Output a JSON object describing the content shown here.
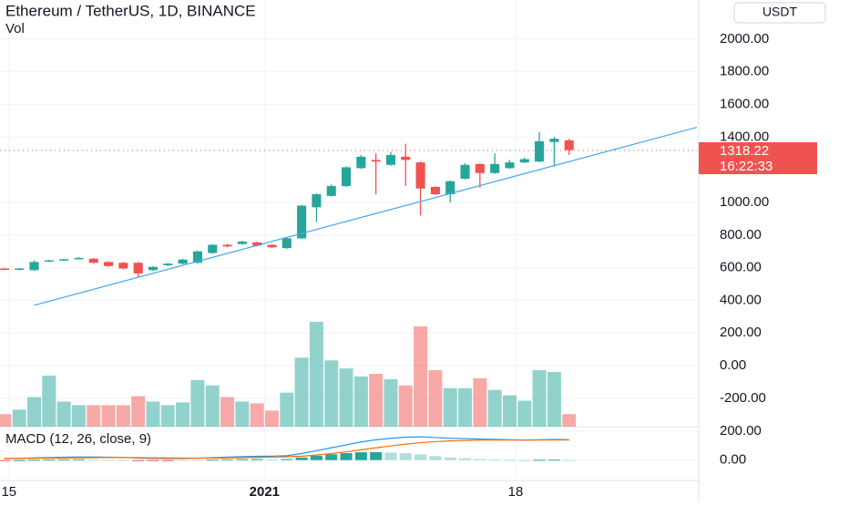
{
  "chart_data": {
    "type": "candlestick",
    "title": "Ethereum / TetherUS, 1D, BINANCE",
    "volume_label": "Vol",
    "currency": "USDT",
    "up_color": "#26a69a",
    "down_color": "#ef5350",
    "xlim": [
      -0.3,
      46.6
    ],
    "xticks": [
      {
        "value": 0.3,
        "label": "15"
      },
      {
        "value": 17.5,
        "label": "2021"
      },
      {
        "value": 34.4,
        "label": "18"
      }
    ],
    "ylim": [
      -374,
      2240
    ],
    "yticks": [
      {
        "value": 2000,
        "label": "2000.00"
      },
      {
        "value": 1800,
        "label": "1800.00"
      },
      {
        "value": 1600,
        "label": "1600.00"
      },
      {
        "value": 1400,
        "label": "1400.00"
      },
      {
        "value": 1000,
        "label": "1000.00"
      },
      {
        "value": 800,
        "label": "800.00"
      },
      {
        "value": 600,
        "label": "600.00"
      },
      {
        "value": 400,
        "label": "400.00"
      },
      {
        "value": 200,
        "label": "200.00"
      },
      {
        "value": 0,
        "label": "0.00"
      },
      {
        "value": -200,
        "label": "-200.00"
      }
    ],
    "open": [
      595,
      592,
      585,
      640,
      648,
      655,
      655,
      635,
      630,
      630,
      585,
      615,
      625,
      630,
      690,
      740,
      745,
      755,
      740,
      720,
      780,
      970,
      1040,
      1100,
      1210,
      1260,
      1230,
      1280,
      1245,
      1095,
      1050,
      1145,
      1235,
      1180,
      1210,
      1245,
      1250,
      1370,
      1380
    ],
    "high": [
      600,
      598,
      645,
      648,
      655,
      665,
      660,
      640,
      635,
      635,
      610,
      628,
      655,
      705,
      745,
      748,
      765,
      760,
      745,
      785,
      985,
      1055,
      1110,
      1220,
      1290,
      1300,
      1310,
      1360,
      1250,
      1100,
      1135,
      1240,
      1240,
      1300,
      1260,
      1275,
      1430,
      1400,
      1390
    ],
    "low": [
      588,
      585,
      580,
      635,
      642,
      650,
      625,
      605,
      590,
      540,
      580,
      610,
      620,
      625,
      685,
      725,
      740,
      730,
      720,
      715,
      775,
      880,
      1035,
      1095,
      1205,
      1050,
      1225,
      1100,
      920,
      1045,
      1000,
      1140,
      1090,
      1175,
      1205,
      1240,
      1245,
      1220,
      1290
    ],
    "close": [
      590,
      595,
      635,
      645,
      652,
      660,
      630,
      610,
      595,
      565,
      605,
      625,
      650,
      700,
      740,
      730,
      760,
      735,
      725,
      780,
      980,
      1050,
      1100,
      1215,
      1280,
      1250,
      1290,
      1260,
      1085,
      1050,
      1130,
      1230,
      1180,
      1235,
      1245,
      1265,
      1375,
      1390,
      1320
    ],
    "volume": [
      14,
      19,
      33,
      57,
      28,
      24,
      24,
      24,
      24,
      34,
      28,
      24,
      27,
      52,
      46,
      33,
      28,
      26,
      18,
      38,
      77,
      117,
      74,
      65,
      56,
      59,
      53,
      46,
      112,
      63,
      43,
      43,
      54,
      41,
      35,
      29,
      63,
      61,
      14
    ],
    "last_price": 1318.22,
    "last_price_label": "1318.22",
    "countdown": "16:22:33",
    "trendline": {
      "color": "#42a5f5",
      "x": [
        2,
        46.6
      ],
      "y": [
        370,
        1460
      ]
    },
    "macd": {
      "title": "MACD (12, 26, close, 9)",
      "ylim": [
        -140,
        230
      ],
      "yticks": [
        {
          "value": 200,
          "label": "200.00"
        },
        {
          "value": 0,
          "label": "0.00"
        }
      ],
      "series": [
        {
          "name": "MACD",
          "color": "#2196f3",
          "values": [
            10,
            12,
            15,
            18,
            20,
            22,
            22,
            20,
            18,
            14,
            12,
            11,
            11,
            13,
            17,
            21,
            24,
            26,
            27,
            30,
            45,
            65,
            85,
            105,
            125,
            140,
            150,
            158,
            160,
            155,
            150,
            148,
            145,
            142,
            140,
            138,
            140,
            142,
            140
          ]
        },
        {
          "name": "Signal",
          "color": "#ff6d00",
          "values": [
            12,
            12,
            13,
            14,
            15,
            16,
            17,
            18,
            18,
            17,
            16,
            15,
            14,
            14,
            14,
            15,
            17,
            19,
            21,
            23,
            27,
            35,
            45,
            57,
            71,
            85,
            98,
            110,
            120,
            127,
            132,
            135,
            137,
            138,
            138,
            138,
            138,
            139,
            139
          ]
        }
      ],
      "histogram": [
        -2,
        0,
        2,
        4,
        5,
        6,
        5,
        2,
        0,
        -3,
        -4,
        -4,
        -3,
        -1,
        3,
        6,
        7,
        7,
        6,
        7,
        18,
        30,
        40,
        48,
        54,
        55,
        52,
        48,
        40,
        28,
        18,
        13,
        8,
        4,
        2,
        0,
        2,
        3,
        1
      ]
    }
  }
}
